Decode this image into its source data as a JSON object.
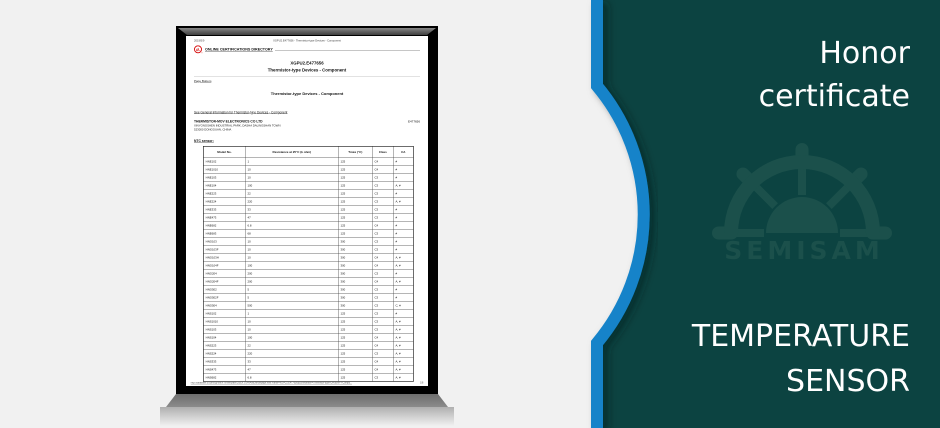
{
  "colors": {
    "teal_background": "#0c4341",
    "accent_blue": "#1583c9",
    "left_background": "#f1f1f1",
    "watermark_teal": "#1b504b",
    "ul_red": "#d40000",
    "text_white": "#ffffff"
  },
  "right_panel": {
    "title_line1": "Honor",
    "title_line2": "certificate",
    "footer_line1": "TEMPERATURE",
    "footer_line2": "SENSOR",
    "watermark_text": "SEMISAM"
  },
  "doc": {
    "print_date": "2019/5/9",
    "print_header": "XGPU2.E477656 - Thermistor-type Devices - Component",
    "ul_logo_text": "UL",
    "directory_title": "ONLINE CERTIFICATIONS DIRECTORY",
    "file_number_title": "XGPU2.E477656",
    "category_title": "Thermistor-type Devices - Component",
    "page_bottom_link": "Page Bottom",
    "section_heading": "Thermistor-type Devices - Component",
    "general_info_link": "See General Information for Thermistor-type Devices - Component",
    "company": {
      "name": "THERMISTOR-MOV ELECTRONICS CO LTD",
      "address_line1": "XINYONGSHEN INDUSTRIAL PARK, DASHA DALINGSHAN TOWN",
      "address_line2": "523000 DONGGUAN, CHINA",
      "file_ref": "E477656"
    },
    "section_label": "NTC sensor:",
    "table": {
      "columns": [
        "Model No.",
        "Resistance at 25°C (k ohm)",
        "Tmax (°C)",
        "Class",
        "CA"
      ],
      "rows": [
        [
          "HNE102",
          "1",
          "125",
          "C4",
          "#"
        ],
        [
          "HNE1010",
          "10",
          "125",
          "C4",
          "#"
        ],
        [
          "HNE103",
          "10",
          "125",
          "C3",
          "#"
        ],
        [
          "HNE104",
          "100",
          "125",
          "C3",
          "A, #"
        ],
        [
          "HNE223",
          "22",
          "125",
          "C3",
          "#"
        ],
        [
          "HNE224",
          "220",
          "125",
          "C3",
          "A, #"
        ],
        [
          "HNE333",
          "33",
          "125",
          "C3",
          "#"
        ],
        [
          "HNE473",
          "47",
          "125",
          "C3",
          "#"
        ],
        [
          "HNE682",
          "6.8",
          "125",
          "C4",
          "#"
        ],
        [
          "HNE683",
          "68",
          "125",
          "C3",
          "#"
        ],
        [
          "HNG103",
          "10",
          "300",
          "C3",
          "#"
        ],
        [
          "HNG103F",
          "10",
          "300",
          "C3",
          "#"
        ],
        [
          "HNG103H",
          "10",
          "300",
          "C4",
          "A, #"
        ],
        [
          "HNG104F",
          "100",
          "300",
          "C4",
          "A, #"
        ],
        [
          "HNG204",
          "200",
          "300",
          "C3",
          "#"
        ],
        [
          "HNG204F",
          "200",
          "300",
          "C4",
          "A, #"
        ],
        [
          "HNG502",
          "5",
          "300",
          "C3",
          "#"
        ],
        [
          "HNG502F",
          "5",
          "300",
          "C3",
          "#"
        ],
        [
          "HNG504",
          "500",
          "300",
          "C3",
          "C, #"
        ],
        [
          "HNS102",
          "1",
          "125",
          "C3",
          "#"
        ],
        [
          "HNS1010",
          "10",
          "125",
          "C3",
          "A, #"
        ],
        [
          "HNS103",
          "10",
          "125",
          "C3",
          "A, #"
        ],
        [
          "HNS104",
          "100",
          "125",
          "C4",
          "A, #"
        ],
        [
          "HNS223",
          "22",
          "125",
          "C4",
          "A, #"
        ],
        [
          "HNS224",
          "220",
          "125",
          "C3",
          "A, #"
        ],
        [
          "HNS333",
          "33",
          "125",
          "C4",
          "A, #"
        ],
        [
          "HNS473",
          "47",
          "125",
          "C4",
          "A, #"
        ],
        [
          "HNS682",
          "6.8",
          "125",
          "C3",
          "A, #"
        ]
      ]
    },
    "footer_url": "http://database.ul.com/cgi-bin/XYV/template/LISEXT/1FRAME/showpage.html?name=XGPU2.E477656&ccnshorttitle=Thermistor-type+Devices+-+Compo...",
    "footer_page": "1/8"
  }
}
